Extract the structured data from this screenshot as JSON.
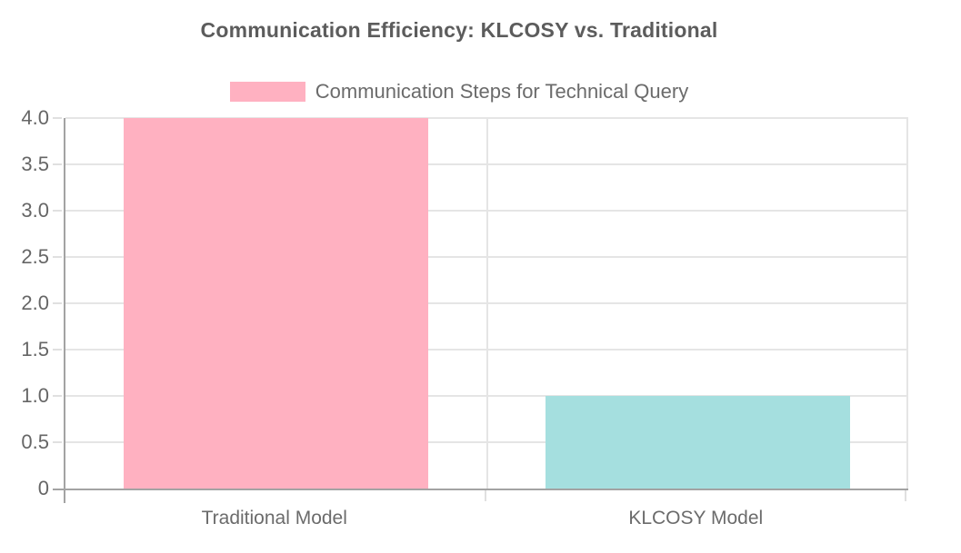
{
  "title": "Communication Efficiency: KLCOSY vs. Traditional",
  "legend": {
    "label": "Communication Steps for Technical Query",
    "swatch_color": "#ffb1c1"
  },
  "colors": {
    "background": "#ffffff",
    "gridline": "#e5e5e5",
    "axis_line": "#a3a3a3",
    "tick_text": "#666666",
    "title_text": "#5c5c5c"
  },
  "chart_data": {
    "type": "bar",
    "title": "Communication Efficiency: KLCOSY vs. Traditional",
    "legend_entries": [
      "Communication Steps for Technical Query"
    ],
    "legend_position": "top-center",
    "categories": [
      "Traditional Model",
      "KLCOSY Model"
    ],
    "series": [
      {
        "name": "Communication Steps for Technical Query",
        "values": [
          4,
          1
        ],
        "bar_colors": [
          "#ffb1c1",
          "#a5dfdf"
        ]
      }
    ],
    "xlabel": "",
    "ylabel": "",
    "ylim": [
      0,
      4
    ],
    "ytick_labels": [
      "0",
      "0.5",
      "1.0",
      "1.5",
      "2.0",
      "2.5",
      "3.0",
      "3.5",
      "4.0"
    ],
    "grid": true
  }
}
